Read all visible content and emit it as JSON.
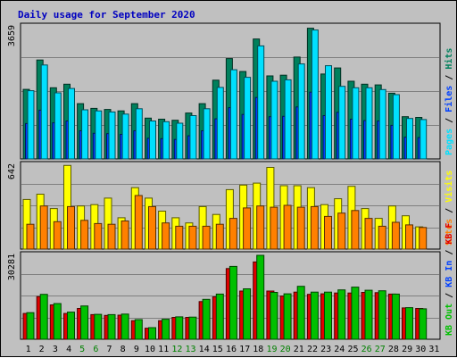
{
  "chart_data": {
    "type": "bar",
    "title": "Daily usage for September 2020",
    "days": [
      "1",
      "2",
      "3",
      "4",
      "5",
      "6",
      "7",
      "8",
      "9",
      "10",
      "11",
      "12",
      "13",
      "14",
      "15",
      "16",
      "17",
      "18",
      "19",
      "20",
      "21",
      "22",
      "23",
      "24",
      "25",
      "26",
      "27",
      "28",
      "29",
      "30",
      "31"
    ],
    "weekend_days": [
      "5",
      "6",
      "12",
      "13",
      "19",
      "20",
      "26",
      "27"
    ],
    "panels": [
      {
        "name": "hits-files-pages",
        "max_label": "3659",
        "ymax": 3659,
        "right_labels": [
          {
            "text": "Hits",
            "color": "#00805c"
          },
          {
            "text": "Files",
            "color": "#0040ff"
          },
          {
            "text": "Pages",
            "color": "#00e0ff"
          }
        ],
        "series": [
          {
            "name": "Hits",
            "color": "#00805c",
            "values": [
              1925,
              2740,
              1970,
              2070,
              1530,
              1400,
              1370,
              1330,
              1530,
              1130,
              1100,
              1070,
              1270,
              1530,
              2180,
              2780,
              2420,
              3320,
              2300,
              2320,
              2820,
              3620,
              2350,
              2520,
              2150,
              2070,
              2050,
              1820,
              1170,
              1150,
              0
            ]
          },
          {
            "name": "Files",
            "color": "#0040ff",
            "values": [
              980,
              1350,
              1000,
              1050,
              780,
              710,
              700,
              680,
              780,
              570,
              560,
              540,
              640,
              780,
              1110,
              1420,
              1230,
              1700,
              1170,
              1180,
              1440,
              1850,
              1200,
              1290,
              1100,
              1060,
              1050,
              930,
              600,
              590,
              0
            ]
          },
          {
            "name": "Pages",
            "color": "#00e0ff",
            "values": [
              1890,
              2600,
              1830,
              1950,
              1360,
              1330,
              1300,
              1240,
              1390,
              1050,
              1030,
              990,
              1200,
              1390,
              1980,
              2470,
              2260,
              3130,
              2150,
              2190,
              2630,
              3570,
              2580,
              2010,
              1970,
              1970,
              1920,
              1780,
              1120,
              1090,
              0
            ]
          }
        ]
      },
      {
        "name": "visits-sites",
        "max_label": "642",
        "ymax": 642,
        "right_labels": [
          {
            "text": "Visits",
            "color": "#ffff00"
          },
          {
            "text": "Sites",
            "color": "#ff8000"
          }
        ],
        "series": [
          {
            "name": "Visits",
            "color": "#ffff00",
            "values": [
              380,
              420,
              310,
              640,
              330,
              340,
              390,
              240,
              470,
              390,
              290,
              240,
              200,
              325,
              265,
              455,
              490,
              505,
              625,
              485,
              485,
              470,
              340,
              385,
              480,
              310,
              235,
              330,
              255,
              170,
              0
            ]
          },
          {
            "name": "Sites",
            "color": "#ff8000",
            "values": [
              190,
              330,
              210,
              325,
              220,
              195,
              190,
              215,
              410,
              325,
              200,
              175,
              175,
              175,
              190,
              235,
              315,
              330,
              320,
              335,
              320,
              325,
              250,
              275,
              295,
              235,
              175,
              205,
              185,
              165,
              0
            ]
          }
        ]
      },
      {
        "name": "kbytes",
        "max_label": "30281",
        "ymax": 30281,
        "right_labels": [
          {
            "text": "KB F",
            "color": "#e00000"
          },
          {
            "text": "KB In",
            "color": "#0040ff"
          },
          {
            "text": "KB Out",
            "color": "#00c000"
          }
        ],
        "series": [
          {
            "name": "KB F",
            "color": "#e00000",
            "values": [
              9300,
              15400,
              12400,
              9300,
              11100,
              8900,
              8600,
              8700,
              6700,
              4000,
              6700,
              7900,
              7900,
              13600,
              15300,
              25500,
              17400,
              27900,
              17400,
              15600,
              17000,
              16200,
              16400,
              16700,
              16700,
              16900,
              16800,
              16300,
              11300,
              11100,
              0
            ]
          },
          {
            "name": "KB Out",
            "color": "#00c000",
            "values": [
              9600,
              16200,
              12900,
              9800,
              12000,
              9000,
              8900,
              9100,
              7100,
              4200,
              7200,
              8100,
              8000,
              14400,
              16300,
              26300,
              18200,
              30281,
              16900,
              16400,
              19100,
              17000,
              17000,
              17800,
              18800,
              17700,
              17500,
              16300,
              11400,
              11000,
              0
            ]
          }
        ]
      }
    ]
  }
}
